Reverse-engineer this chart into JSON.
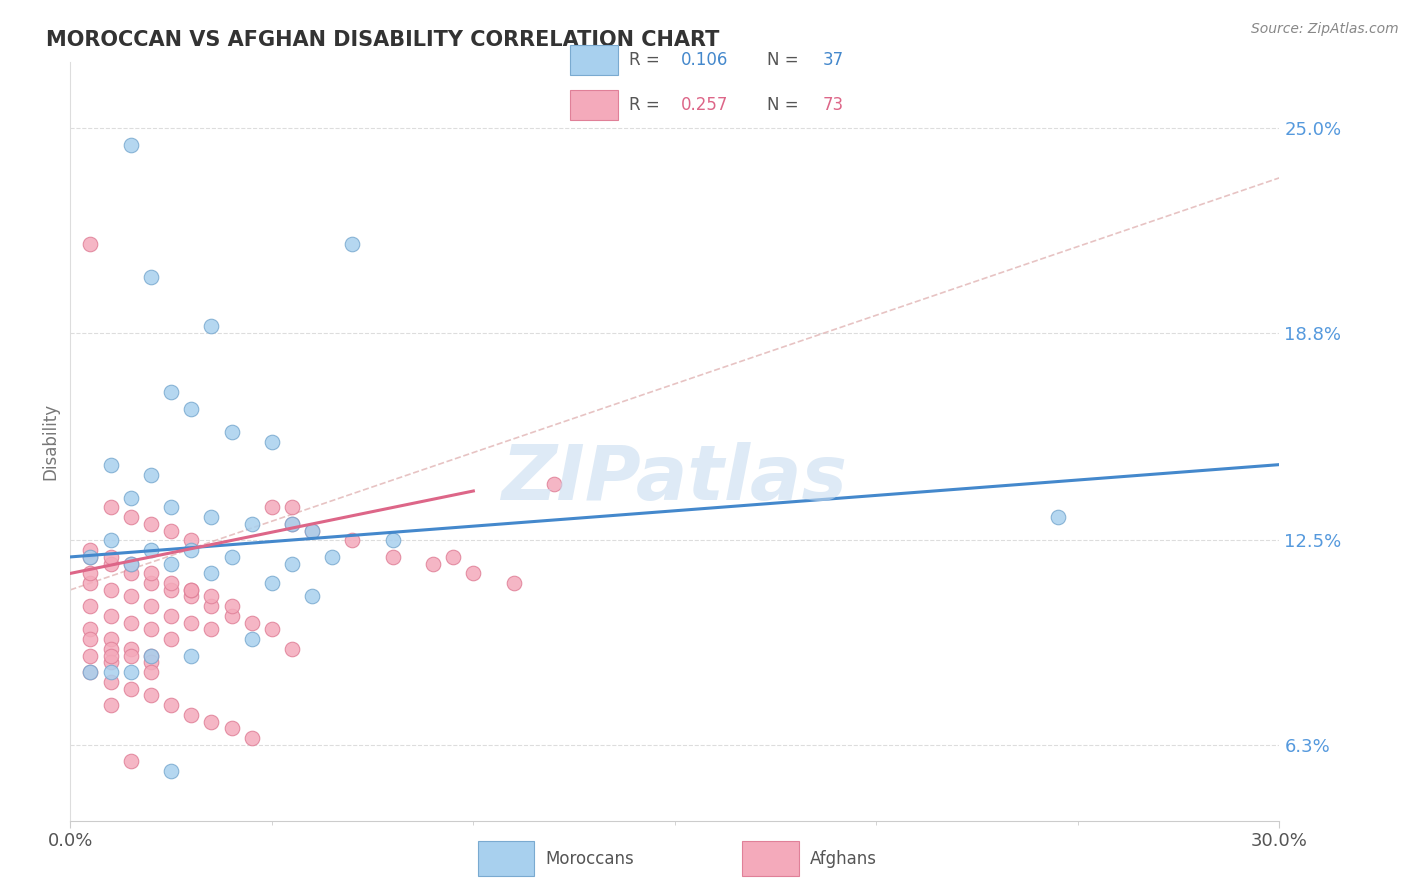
{
  "title": "MOROCCAN VS AFGHAN DISABILITY CORRELATION CHART",
  "source": "Source: ZipAtlas.com",
  "ylabel": "Disability",
  "xlim": [
    0.0,
    30.0
  ],
  "ylim": [
    4.0,
    27.0
  ],
  "xtick_labels": [
    "0.0%",
    "30.0%"
  ],
  "ytick_positions": [
    6.3,
    12.5,
    18.8,
    25.0
  ],
  "ytick_labels": [
    "6.3%",
    "12.5%",
    "18.8%",
    "25.0%"
  ],
  "moroccan_color": "#A8D0EE",
  "afghan_color": "#F4AABB",
  "moroccan_edge": "#7AAAD0",
  "afghan_edge": "#E08098",
  "moroccan_R": 0.106,
  "moroccan_N": 37,
  "afghan_R": 0.257,
  "afghan_N": 73,
  "watermark": "ZIPatlas",
  "watermark_color": "#C8DCF0",
  "grid_color": "#DDDDDD",
  "moroccan_line_color": "#4488CC",
  "afghan_line_color": "#DD6688",
  "dashed_line_color": "#DDAAAA",
  "moroccan_scatter_x": [
    1.5,
    2.0,
    3.5,
    2.5,
    3.0,
    5.0,
    1.0,
    2.0,
    1.5,
    2.5,
    3.5,
    4.5,
    5.5,
    6.0,
    1.0,
    2.0,
    3.0,
    4.0,
    0.5,
    1.5,
    2.5,
    3.5,
    7.0,
    5.0,
    6.0,
    4.5,
    3.0,
    2.0,
    1.0,
    0.5,
    1.5,
    2.5,
    24.5,
    8.0,
    6.5,
    5.5,
    4.0
  ],
  "moroccan_scatter_y": [
    24.5,
    20.5,
    19.0,
    17.0,
    16.5,
    15.5,
    14.8,
    14.5,
    13.8,
    13.5,
    13.2,
    13.0,
    13.0,
    12.8,
    12.5,
    12.2,
    12.2,
    12.0,
    12.0,
    11.8,
    11.8,
    11.5,
    21.5,
    11.2,
    10.8,
    9.5,
    9.0,
    9.0,
    8.5,
    8.5,
    8.5,
    5.5,
    13.2,
    12.5,
    12.0,
    11.8,
    15.8
  ],
  "afghan_scatter_x": [
    0.5,
    1.0,
    1.5,
    2.0,
    2.5,
    3.0,
    0.5,
    1.0,
    1.5,
    2.0,
    2.5,
    3.0,
    3.5,
    4.0,
    4.5,
    5.0,
    0.5,
    1.0,
    1.5,
    2.0,
    2.5,
    3.0,
    3.5,
    4.0,
    0.5,
    1.0,
    1.5,
    2.0,
    2.5,
    3.0,
    3.5,
    0.5,
    1.0,
    1.5,
    2.0,
    2.5,
    0.5,
    1.0,
    1.5,
    2.0,
    0.5,
    1.0,
    1.5,
    0.5,
    1.0,
    0.5,
    1.0,
    1.5,
    2.0,
    2.5,
    3.0,
    3.5,
    4.0,
    4.5,
    5.0,
    5.5,
    6.0,
    7.0,
    8.0,
    9.0,
    10.0,
    11.0,
    12.0,
    5.5,
    1.0,
    2.0,
    3.0,
    5.5,
    9.5,
    0.5,
    1.0,
    2.0,
    1.5
  ],
  "afghan_scatter_y": [
    21.5,
    13.5,
    13.2,
    13.0,
    12.8,
    12.5,
    12.0,
    11.8,
    11.5,
    11.2,
    11.0,
    10.8,
    10.5,
    10.2,
    10.0,
    9.8,
    12.2,
    12.0,
    11.8,
    11.5,
    11.2,
    11.0,
    10.8,
    10.5,
    11.2,
    11.0,
    10.8,
    10.5,
    10.2,
    10.0,
    9.8,
    10.5,
    10.2,
    10.0,
    9.8,
    9.5,
    9.8,
    9.5,
    9.2,
    9.0,
    9.5,
    9.2,
    9.0,
    9.0,
    8.8,
    8.5,
    8.2,
    8.0,
    7.8,
    7.5,
    7.2,
    7.0,
    6.8,
    6.5,
    13.5,
    13.0,
    12.8,
    12.5,
    12.0,
    11.8,
    11.5,
    11.2,
    14.2,
    9.2,
    9.0,
    8.8,
    11.0,
    13.5,
    12.0,
    11.5,
    7.5,
    8.5,
    5.8
  ],
  "moroccan_trend_x0": 0.0,
  "moroccan_trend_y0": 12.0,
  "moroccan_trend_x1": 30.0,
  "moroccan_trend_y1": 14.8,
  "afghan_trend_x0": 0.0,
  "afghan_trend_y0": 11.5,
  "afghan_trend_x1": 10.0,
  "afghan_trend_y1": 14.0,
  "dashed_trend_x0": 0.0,
  "dashed_trend_y0": 11.0,
  "dashed_trend_x1": 30.0,
  "dashed_trend_y1": 23.5
}
